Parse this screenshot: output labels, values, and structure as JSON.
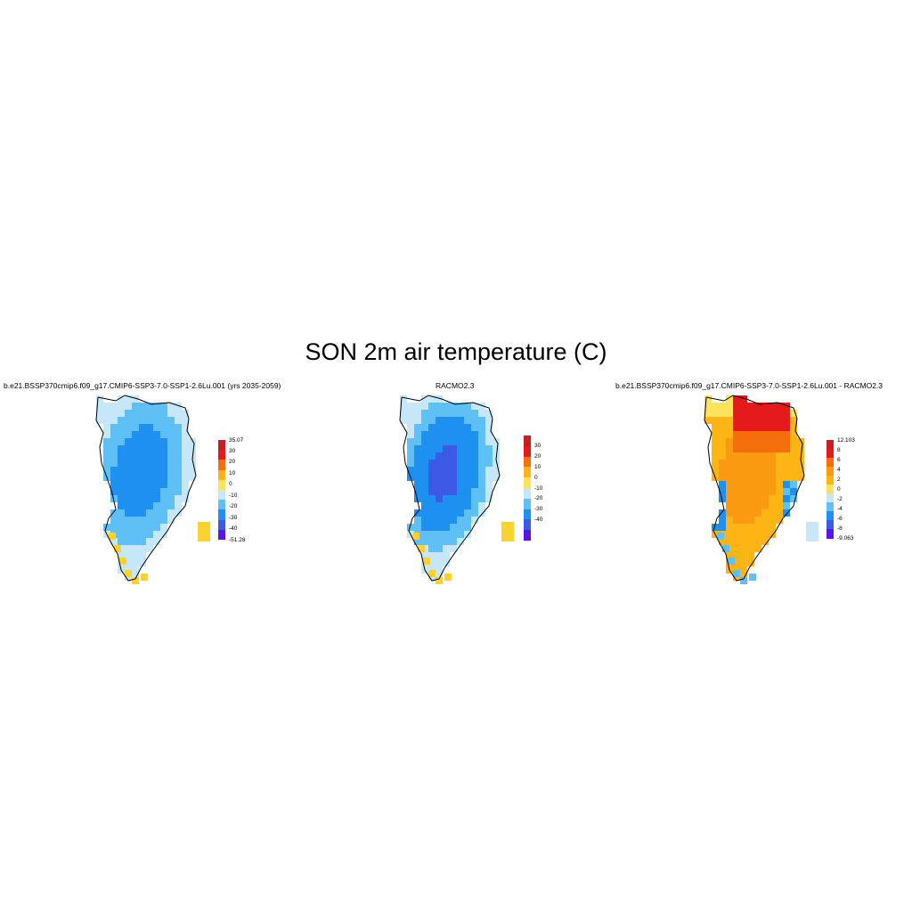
{
  "figure": {
    "title": "SON 2m air temperature (C)"
  },
  "panels": [
    {
      "title": "b.e21.BSSP370cmip6.f09_g17.CMIP6-SSP3-7.0-SSP1-2.6Lu.001 (yrs 2035-2059)",
      "colorbar": {
        "labels": [
          "35.07",
          "30",
          "20",
          "10",
          "0",
          "-10",
          "-20",
          "-30",
          "-40",
          "-51.28"
        ],
        "colors": [
          "#c81e1e",
          "#e41a1c",
          "#f56f0d",
          "#fdb515",
          "#fde25c",
          "#c6e7f7",
          "#5ec0f5",
          "#1e90f0",
          "#3c5ae6",
          "#5a14e6"
        ]
      },
      "field": "absolute"
    },
    {
      "title": "RACMO2.3",
      "colorbar": {
        "labels": [
          "30",
          "20",
          "10",
          "0",
          "-10",
          "-20",
          "-30",
          "-40"
        ],
        "colors": [
          "#c81e1e",
          "#e41a1c",
          "#f56f0d",
          "#fdb515",
          "#fde25c",
          "#c6e7f7",
          "#5ec0f5",
          "#1e90f0",
          "#3c5ae6",
          "#5a14e6"
        ]
      },
      "field": "absolute-racmo"
    },
    {
      "title": "b.e21.BSSP370cmip6.f09_g17.CMIP6-SSP3-7.0-SSP1-2.6Lu.001 - RACMO2.3",
      "colorbar": {
        "labels": [
          "12.103",
          "8",
          "6",
          "4",
          "2",
          "0",
          "-2",
          "-4",
          "-6",
          "-8",
          "-9.063"
        ],
        "colors": [
          "#c81e1e",
          "#e41a1c",
          "#f56f0d",
          "#f99a10",
          "#fdb515",
          "#fde25c",
          "#c6e7f7",
          "#5ec0f5",
          "#1e90f0",
          "#3c5ae6",
          "#5a14e6"
        ]
      },
      "field": "difference"
    }
  ]
}
